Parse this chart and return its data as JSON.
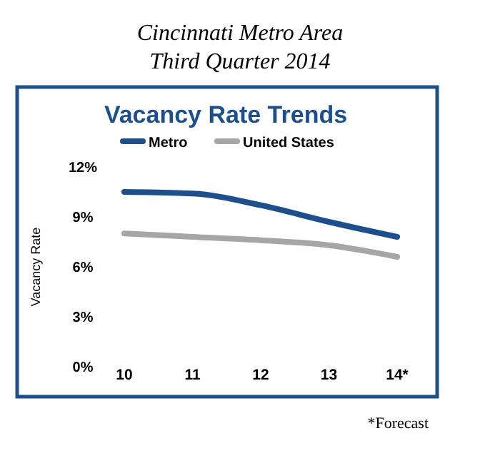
{
  "chart_data": {
    "type": "line",
    "title": "Cincinnati Metro Area",
    "subtitle": "Third Quarter 2014",
    "annotations": [
      "Vacancy Rate Trends",
      "*Forecast"
    ],
    "ylabel": "Vacancy Rate",
    "categories": [
      "10",
      "11",
      "12",
      "13",
      "14*"
    ],
    "series": [
      {
        "name": "Metro",
        "color": "#1c4f8c",
        "values": [
          10.5,
          10.4,
          9.7,
          8.7,
          7.8
        ]
      },
      {
        "name": "United States",
        "color": "#a6a6a6",
        "values": [
          8.0,
          7.8,
          7.6,
          7.3,
          6.6
        ]
      }
    ],
    "ylim": [
      0,
      12
    ],
    "yticks": [
      {
        "value": 0,
        "label": "0%"
      },
      {
        "value": 3,
        "label": "3%"
      },
      {
        "value": 6,
        "label": "6%"
      },
      {
        "value": 9,
        "label": "9%"
      },
      {
        "value": 12,
        "label": "12%"
      }
    ],
    "legend": "top",
    "grid": false
  }
}
